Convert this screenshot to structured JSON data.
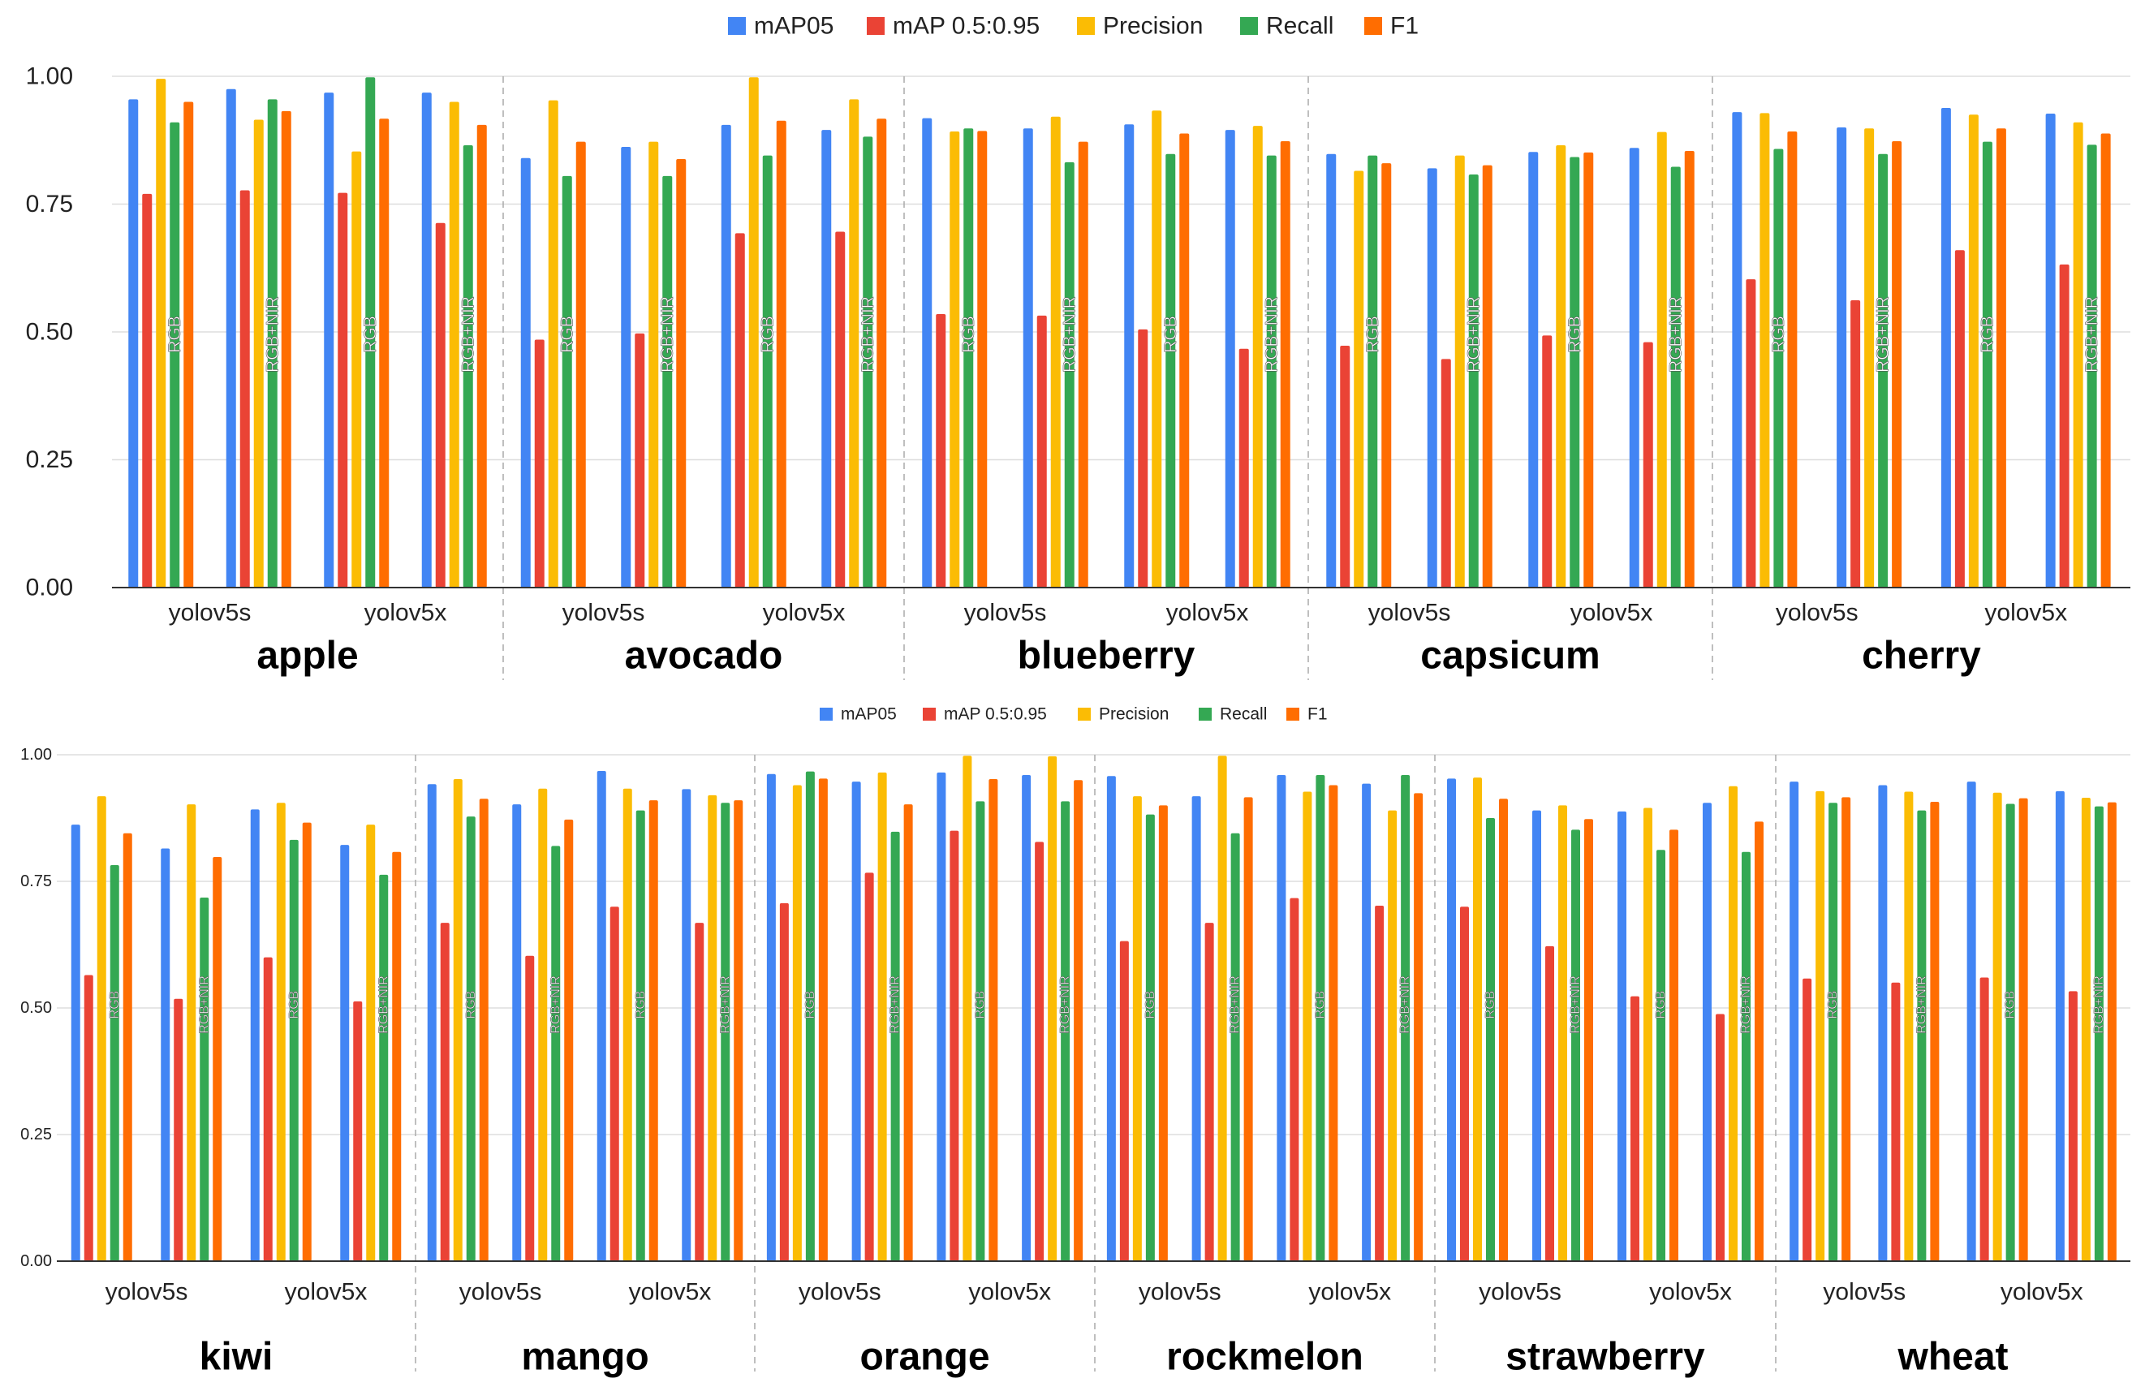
{
  "series_names": [
    "mAP05",
    "mAP 0.5:0.95",
    "Precision",
    "Recall",
    "F1"
  ],
  "series_colors": [
    "#4285F4",
    "#EA4335",
    "#FBBC04",
    "#34A853",
    "#FF6D01"
  ],
  "model_labels": [
    "yolov5s",
    "yolov5x"
  ],
  "input_labels": [
    "RGB",
    "RGB+NIR"
  ],
  "chart_data": [
    {
      "type": "bar",
      "title": "",
      "ylim": [
        0,
        1
      ],
      "yticks": [
        "0.00",
        "0.25",
        "0.50",
        "0.75",
        "1.00"
      ],
      "legend": "top",
      "grid": true,
      "groups": [
        {
          "fruit": "apple",
          "bars": [
            {
              "model": "yolov5s",
              "input": "RGB",
              "values": [
                0.955,
                0.77,
                0.995,
                0.91,
                0.95
              ]
            },
            {
              "model": "yolov5s",
              "input": "RGB+NIR",
              "values": [
                0.975,
                0.777,
                0.915,
                0.955,
                0.932
              ]
            },
            {
              "model": "yolov5x",
              "input": "RGB",
              "values": [
                0.968,
                0.772,
                0.853,
                0.998,
                0.917
              ]
            },
            {
              "model": "yolov5x",
              "input": "RGB+NIR",
              "values": [
                0.968,
                0.713,
                0.95,
                0.865,
                0.905
              ]
            }
          ]
        },
        {
          "fruit": "avocado",
          "bars": [
            {
              "model": "yolov5s",
              "input": "RGB",
              "values": [
                0.84,
                0.485,
                0.953,
                0.805,
                0.872
              ]
            },
            {
              "model": "yolov5s",
              "input": "RGB+NIR",
              "values": [
                0.862,
                0.497,
                0.872,
                0.805,
                0.838
              ]
            },
            {
              "model": "yolov5x",
              "input": "RGB",
              "values": [
                0.905,
                0.693,
                0.998,
                0.845,
                0.913
              ]
            },
            {
              "model": "yolov5x",
              "input": "RGB+NIR",
              "values": [
                0.895,
                0.696,
                0.955,
                0.882,
                0.917
              ]
            }
          ]
        },
        {
          "fruit": "blueberry",
          "bars": [
            {
              "model": "yolov5s",
              "input": "RGB",
              "values": [
                0.918,
                0.535,
                0.892,
                0.898,
                0.893
              ]
            },
            {
              "model": "yolov5s",
              "input": "RGB+NIR",
              "values": [
                0.898,
                0.532,
                0.921,
                0.832,
                0.872
              ]
            },
            {
              "model": "yolov5x",
              "input": "RGB",
              "values": [
                0.906,
                0.505,
                0.933,
                0.848,
                0.888
              ]
            },
            {
              "model": "yolov5x",
              "input": "RGB+NIR",
              "values": [
                0.895,
                0.467,
                0.903,
                0.845,
                0.873
              ]
            }
          ]
        },
        {
          "fruit": "capsicum",
          "bars": [
            {
              "model": "yolov5s",
              "input": "RGB",
              "values": [
                0.848,
                0.473,
                0.815,
                0.845,
                0.83
              ]
            },
            {
              "model": "yolov5s",
              "input": "RGB+NIR",
              "values": [
                0.82,
                0.447,
                0.845,
                0.808,
                0.826
              ]
            },
            {
              "model": "yolov5x",
              "input": "RGB",
              "values": [
                0.852,
                0.493,
                0.865,
                0.842,
                0.851
              ]
            },
            {
              "model": "yolov5x",
              "input": "RGB+NIR",
              "values": [
                0.86,
                0.48,
                0.891,
                0.823,
                0.854
              ]
            }
          ]
        },
        {
          "fruit": "cherry",
          "bars": [
            {
              "model": "yolov5s",
              "input": "RGB",
              "values": [
                0.93,
                0.603,
                0.928,
                0.858,
                0.892
              ]
            },
            {
              "model": "yolov5s",
              "input": "RGB+NIR",
              "values": [
                0.9,
                0.562,
                0.898,
                0.848,
                0.873
              ]
            },
            {
              "model": "yolov5x",
              "input": "RGB",
              "values": [
                0.938,
                0.66,
                0.925,
                0.872,
                0.898
              ]
            },
            {
              "model": "yolov5x",
              "input": "RGB+NIR",
              "values": [
                0.927,
                0.632,
                0.91,
                0.866,
                0.888
              ]
            }
          ]
        }
      ]
    },
    {
      "type": "bar",
      "title": "",
      "ylim": [
        0,
        1
      ],
      "yticks": [
        "0.00",
        "0.25",
        "0.50",
        "0.75",
        "1.00"
      ],
      "legend": "top",
      "grid": true,
      "groups": [
        {
          "fruit": "kiwi",
          "bars": [
            {
              "model": "yolov5s",
              "input": "RGB",
              "values": [
                0.862,
                0.565,
                0.918,
                0.782,
                0.845
              ]
            },
            {
              "model": "yolov5s",
              "input": "RGB+NIR",
              "values": [
                0.815,
                0.518,
                0.902,
                0.718,
                0.798
              ]
            },
            {
              "model": "yolov5x",
              "input": "RGB",
              "values": [
                0.892,
                0.6,
                0.905,
                0.832,
                0.866
              ]
            },
            {
              "model": "yolov5x",
              "input": "RGB+NIR",
              "values": [
                0.822,
                0.513,
                0.862,
                0.763,
                0.808
              ]
            }
          ]
        },
        {
          "fruit": "mango",
          "bars": [
            {
              "model": "yolov5s",
              "input": "RGB",
              "values": [
                0.942,
                0.668,
                0.952,
                0.878,
                0.913
              ]
            },
            {
              "model": "yolov5s",
              "input": "RGB+NIR",
              "values": [
                0.902,
                0.603,
                0.933,
                0.82,
                0.872
              ]
            },
            {
              "model": "yolov5x",
              "input": "RGB",
              "values": [
                0.968,
                0.7,
                0.933,
                0.89,
                0.91
              ]
            },
            {
              "model": "yolov5x",
              "input": "RGB+NIR",
              "values": [
                0.932,
                0.668,
                0.92,
                0.905,
                0.91
              ]
            }
          ]
        },
        {
          "fruit": "orange",
          "bars": [
            {
              "model": "yolov5s",
              "input": "RGB",
              "values": [
                0.962,
                0.707,
                0.94,
                0.967,
                0.953
              ]
            },
            {
              "model": "yolov5s",
              "input": "RGB+NIR",
              "values": [
                0.947,
                0.767,
                0.965,
                0.848,
                0.902
              ]
            },
            {
              "model": "yolov5x",
              "input": "RGB",
              "values": [
                0.965,
                0.85,
                0.998,
                0.908,
                0.952
              ]
            },
            {
              "model": "yolov5x",
              "input": "RGB+NIR",
              "values": [
                0.96,
                0.828,
                0.997,
                0.908,
                0.95
              ]
            }
          ]
        },
        {
          "fruit": "rockmelon",
          "bars": [
            {
              "model": "yolov5s",
              "input": "RGB",
              "values": [
                0.958,
                0.632,
                0.918,
                0.882,
                0.9
              ]
            },
            {
              "model": "yolov5s",
              "input": "RGB+NIR",
              "values": [
                0.918,
                0.668,
                0.998,
                0.845,
                0.916
              ]
            },
            {
              "model": "yolov5x",
              "input": "RGB",
              "values": [
                0.96,
                0.717,
                0.927,
                0.96,
                0.94
              ]
            },
            {
              "model": "yolov5x",
              "input": "RGB+NIR",
              "values": [
                0.943,
                0.702,
                0.89,
                0.96,
                0.924
              ]
            }
          ]
        },
        {
          "fruit": "strawberry",
          "bars": [
            {
              "model": "yolov5s",
              "input": "RGB",
              "values": [
                0.953,
                0.7,
                0.955,
                0.875,
                0.913
              ]
            },
            {
              "model": "yolov5s",
              "input": "RGB+NIR",
              "values": [
                0.89,
                0.622,
                0.9,
                0.852,
                0.873
              ]
            },
            {
              "model": "yolov5x",
              "input": "RGB",
              "values": [
                0.888,
                0.523,
                0.895,
                0.812,
                0.852
              ]
            },
            {
              "model": "yolov5x",
              "input": "RGB+NIR",
              "values": [
                0.905,
                0.488,
                0.938,
                0.808,
                0.868
              ]
            }
          ]
        },
        {
          "fruit": "wheat",
          "bars": [
            {
              "model": "yolov5s",
              "input": "RGB",
              "values": [
                0.947,
                0.558,
                0.928,
                0.905,
                0.916
              ]
            },
            {
              "model": "yolov5s",
              "input": "RGB+NIR",
              "values": [
                0.94,
                0.55,
                0.927,
                0.89,
                0.907
              ]
            },
            {
              "model": "yolov5x",
              "input": "RGB",
              "values": [
                0.947,
                0.56,
                0.925,
                0.903,
                0.914
              ]
            },
            {
              "model": "yolov5x",
              "input": "RGB+NIR",
              "values": [
                0.928,
                0.533,
                0.915,
                0.898,
                0.906
              ]
            }
          ]
        }
      ]
    }
  ]
}
